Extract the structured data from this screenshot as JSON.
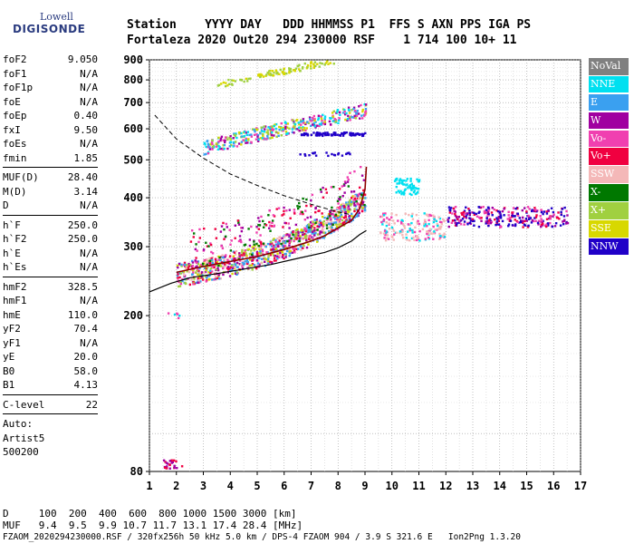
{
  "logo": {
    "brand": "Lowell",
    "product": "DIGISONDE"
  },
  "header": {
    "line1": "Station    YYYY DAY   DDD HHMMSS P1  FFS S AXN PPS IGA PS",
    "line2": "Fortaleza 2020 Out20 294 230000 RSF    1 714 100 10+ 11"
  },
  "params": {
    "g1": [
      [
        "foF2",
        "9.050"
      ],
      [
        "foF1",
        "N/A"
      ],
      [
        "foF1p",
        "N/A"
      ],
      [
        "foE",
        "N/A"
      ],
      [
        "foEp",
        "0.40"
      ],
      [
        "fxI",
        "9.50"
      ],
      [
        "foEs",
        "N/A"
      ],
      [
        "fmin",
        "1.85"
      ]
    ],
    "g2": [
      [
        "MUF(D)",
        "28.40"
      ],
      [
        "M(D)",
        "3.14"
      ],
      [
        "D",
        "N/A"
      ]
    ],
    "g3": [
      [
        "h`F",
        "250.0"
      ],
      [
        "h`F2",
        "250.0"
      ],
      [
        "h`E",
        "N/A"
      ],
      [
        "h`Es",
        "N/A"
      ]
    ],
    "g4": [
      [
        "hmF2",
        "328.5"
      ],
      [
        "hmF1",
        "N/A"
      ],
      [
        "hmE",
        "110.0"
      ],
      [
        "yF2",
        "70.4"
      ],
      [
        "yF1",
        "N/A"
      ],
      [
        "yE",
        "20.0"
      ],
      [
        "B0",
        "58.0"
      ],
      [
        "B1",
        "4.13"
      ]
    ],
    "g5": [
      [
        "C-level",
        "22"
      ]
    ],
    "auto1": "Auto:",
    "auto2": "Artist5",
    "auto3": "500200"
  },
  "bottom": {
    "d_line": "D     100  200  400  600  800 1000 1500 3000 [km]",
    "muf_line": "MUF   9.4  9.5  9.9 10.7 11.7 13.1 17.4 28.4 [MHz]",
    "file_line": "FZAOM_2020294230000.RSF / 320fx256h 50 kHz 5.0 km / DPS-4 FZAOM 904 / 3.9 S 321.6 E   Ion2Png 1.3.20"
  },
  "legend": [
    {
      "label": "NoVal",
      "color": "#808080"
    },
    {
      "label": "NNE",
      "color": "#00e0f0"
    },
    {
      "label": "E",
      "color": "#3aa0f0"
    },
    {
      "label": "W",
      "color": "#a000a0"
    },
    {
      "label": "Vo-",
      "color": "#f040b0"
    },
    {
      "label": "Vo+",
      "color": "#f00040"
    },
    {
      "label": "SSW",
      "color": "#f4b8b8"
    },
    {
      "label": "X-",
      "color": "#007800"
    },
    {
      "label": "X+",
      "color": "#a0d040"
    },
    {
      "label": "SSE",
      "color": "#d8d800"
    },
    {
      "label": "NNW",
      "color": "#2000c8"
    }
  ],
  "chart_data": {
    "type": "scatter",
    "xlabel": "",
    "ylabel": "",
    "xlim": [
      1,
      17
    ],
    "ylim": [
      80,
      900
    ],
    "y_scale": "log",
    "xticks": [
      "1",
      "2",
      "3",
      "4",
      "5",
      "6",
      "7",
      "8",
      "9",
      "10",
      "11",
      "12",
      "13",
      "14",
      "15",
      "16",
      "17"
    ],
    "yticks": [
      "80",
      "200",
      "300",
      "400",
      "500",
      "600",
      "700",
      "800",
      "900"
    ],
    "grid": true,
    "profile_line": {
      "x": [
        1.0,
        1.8,
        2.5,
        3.5,
        4.5,
        5.5,
        6.5,
        7.5,
        8.0,
        8.5,
        8.8,
        9.05
      ],
      "y": [
        230,
        242,
        250,
        256,
        263,
        270,
        280,
        290,
        298,
        310,
        322,
        330
      ]
    },
    "dashed_line": {
      "x": [
        1.2,
        2.0,
        3.0,
        4.0,
        5.0,
        6.0,
        7.0,
        8.0,
        8.5
      ],
      "y": [
        650,
        565,
        505,
        460,
        430,
        405,
        385,
        368,
        362
      ]
    },
    "trace_line": {
      "x": [
        2.0,
        3.0,
        4.0,
        5.0,
        6.0,
        7.0,
        7.5,
        8.0,
        8.5,
        8.8,
        9.0,
        9.05
      ],
      "y": [
        258,
        267,
        275,
        283,
        295,
        310,
        320,
        335,
        350,
        375,
        420,
        480
      ]
    },
    "cluster_ranges": [
      {
        "name": "F-trace",
        "x": [
          2.0,
          9.0
        ],
        "y": [
          265,
          345
        ]
      },
      {
        "name": "upper-F",
        "x": [
          3.0,
          9.0
        ],
        "y": [
          520,
          720
        ]
      },
      {
        "name": "upper-2F",
        "x": [
          3.5,
          8.0
        ],
        "y": [
          760,
          900
        ]
      },
      {
        "name": "band-580",
        "x": [
          6.5,
          9.0
        ],
        "y": [
          570,
          600
        ]
      },
      {
        "name": "high-freq",
        "x": [
          9.5,
          16.5
        ],
        "y": [
          300,
          430
        ]
      },
      {
        "name": "low-freq",
        "x": [
          1.3,
          2.2
        ],
        "y": [
          80,
          200
        ]
      }
    ]
  }
}
